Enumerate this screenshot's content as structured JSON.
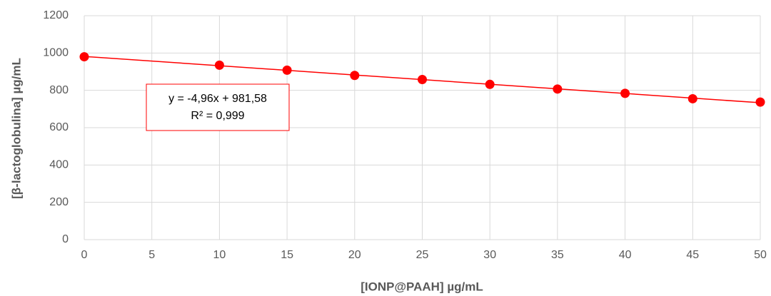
{
  "chart_data": {
    "type": "scatter",
    "x_label": "[IONP@PAAH] µg/mL",
    "y_label": "[β-lactoglobulina] µg/mL",
    "series": [
      {
        "name": "β-lactoglobulina",
        "color": "#ff0000",
        "x": [
          0,
          10,
          15,
          20,
          25,
          30,
          35,
          40,
          45,
          50
        ],
        "values": [
          980,
          935,
          908,
          880,
          858,
          832,
          807,
          784,
          755,
          737
        ]
      }
    ],
    "trendline": {
      "slope": -4.96,
      "intercept": 981.58,
      "color": "#ff0000"
    },
    "annotation": [
      "y = -4,96x + 981,58",
      "R² = 0,999"
    ],
    "xlim": [
      0,
      50
    ],
    "xticks": [
      0,
      5,
      10,
      15,
      20,
      25,
      30,
      35,
      40,
      45,
      50
    ],
    "ylim": [
      0,
      1200
    ],
    "yticks": [
      0,
      200,
      400,
      600,
      800,
      1000,
      1200
    ],
    "grid": true
  }
}
